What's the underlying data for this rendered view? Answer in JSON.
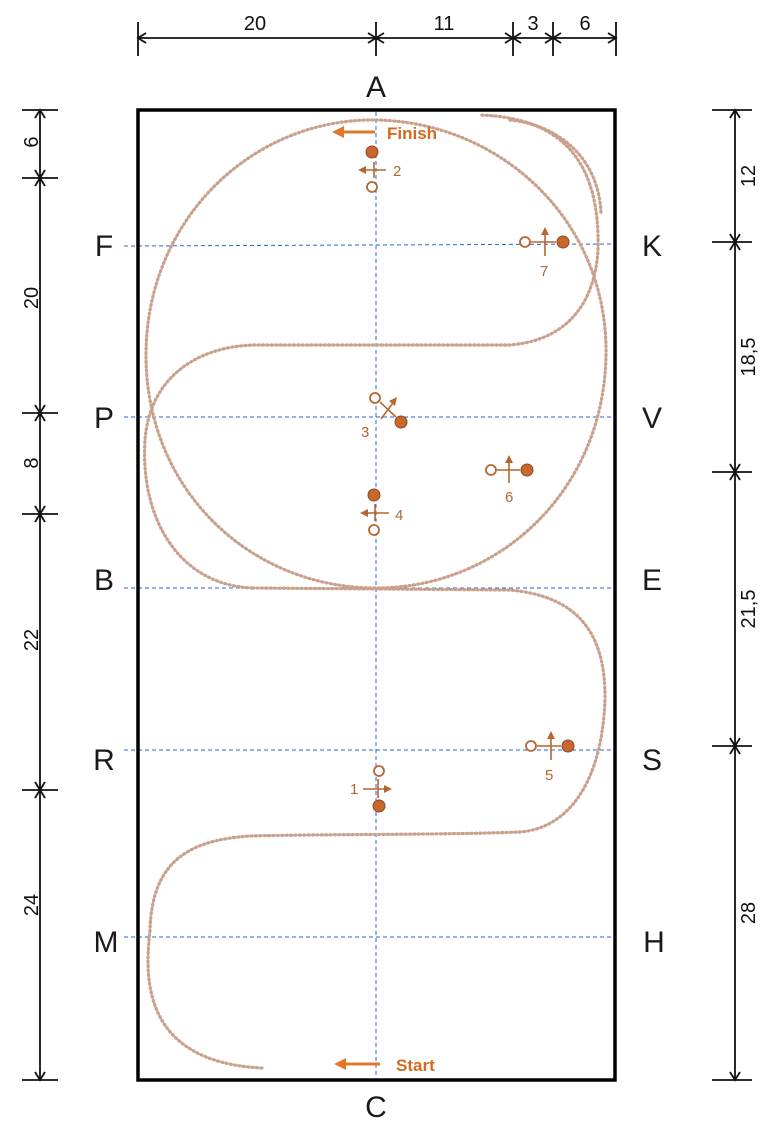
{
  "arena": {
    "letters": {
      "A": "A",
      "C": "C",
      "F": "F",
      "P": "P",
      "B": "B",
      "R": "R",
      "M": "M",
      "K": "K",
      "V": "V",
      "E": "E",
      "S": "S",
      "H": "H"
    }
  },
  "dimensions": {
    "top": [
      "20",
      "11",
      "3",
      "6"
    ],
    "left": [
      "6",
      "20",
      "8",
      "22",
      "24"
    ],
    "right": [
      "12",
      "18,5",
      "21,5",
      "28"
    ]
  },
  "labels": {
    "finish": "Finish",
    "start": "Start"
  },
  "markers": [
    {
      "number": "1"
    },
    {
      "number": "2"
    },
    {
      "number": "3"
    },
    {
      "number": "4"
    },
    {
      "number": "5"
    },
    {
      "number": "6"
    },
    {
      "number": "7"
    }
  ],
  "colors": {
    "track": "#c9a08a",
    "marker": "#c8682f",
    "guide": "#2b63d9",
    "label": "#d4691f"
  }
}
